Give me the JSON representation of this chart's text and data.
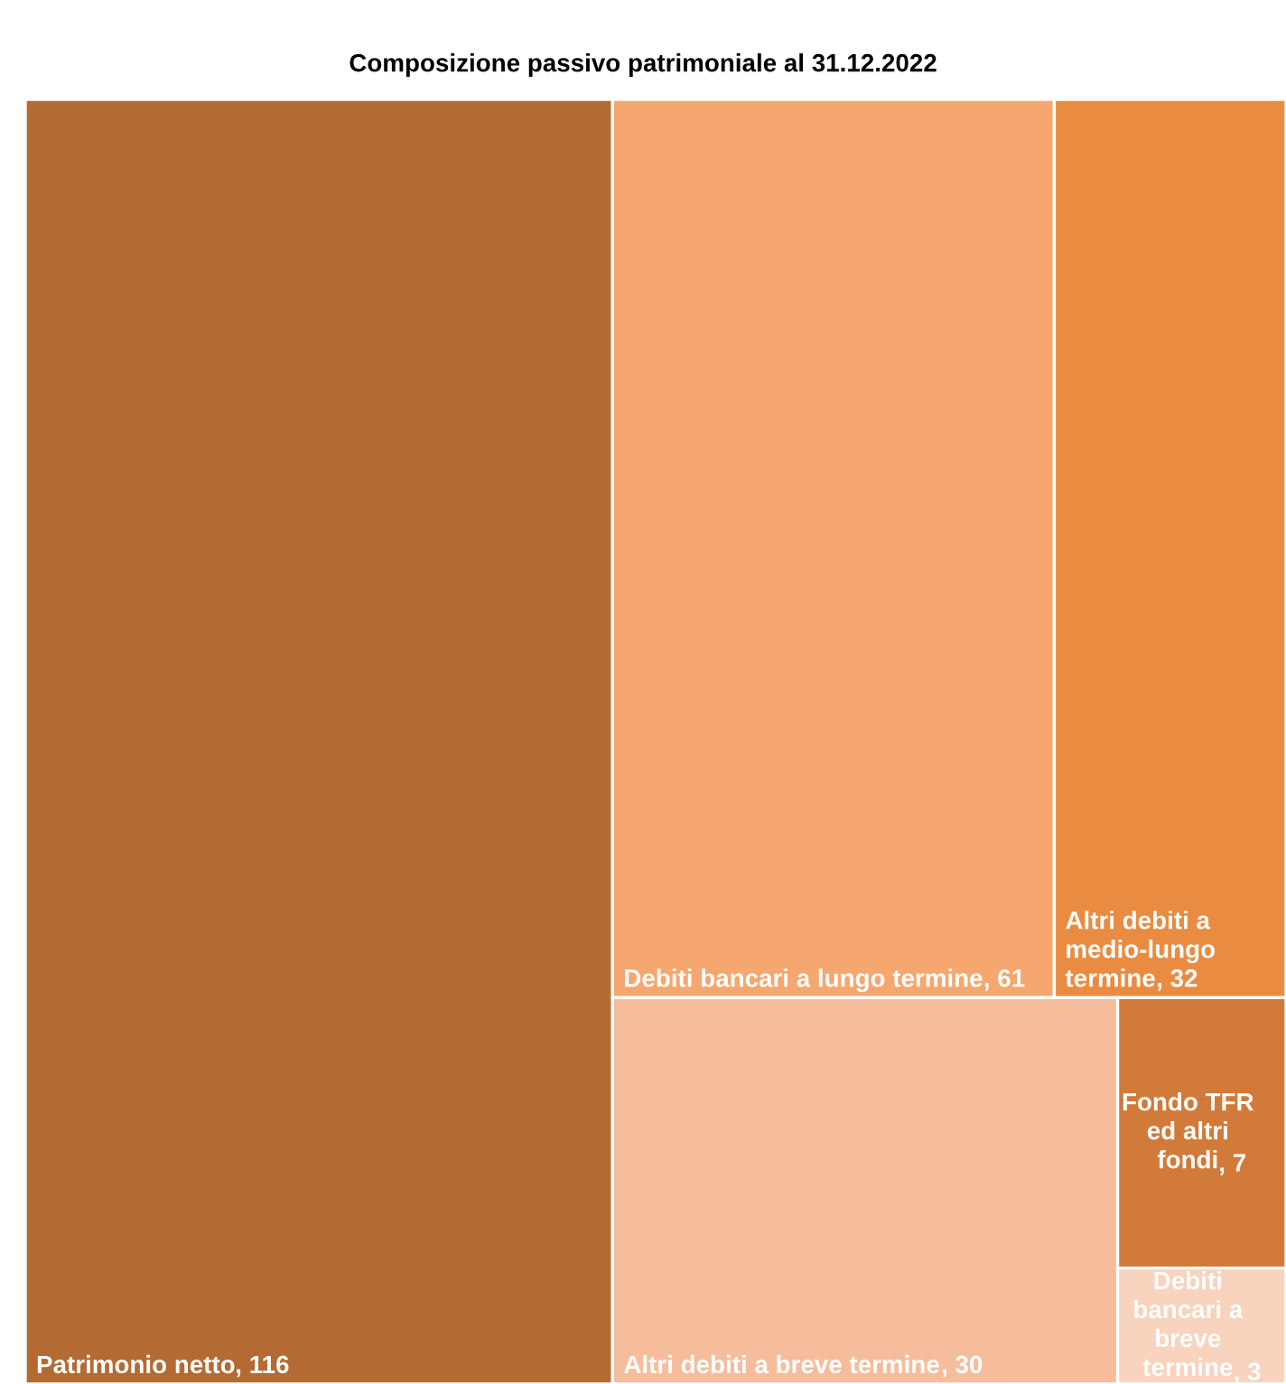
{
  "chart_data": {
    "type": "other",
    "title": "Composizione passivo patrimoniale al 31.12.2022",
    "categories": [
      "Patrimonio netto",
      "Debiti bancari a lungo termine",
      "Altri debiti a medio-lungo termine",
      "Altri debiti a breve termine",
      "Fondo TFR ed altri fondi",
      "Debiti bancari a breve termine"
    ],
    "values": [
      116,
      61,
      32,
      30,
      7,
      3
    ],
    "colors": [
      "#b36b33",
      "#f5a76f",
      "#e98c42",
      "#f5bd9c",
      "#d27a3a",
      "#f8d3bd"
    ],
    "value_labels": [
      ", 116",
      ", 61",
      ", 32",
      ", 30",
      ", 7",
      ", 3"
    ]
  }
}
